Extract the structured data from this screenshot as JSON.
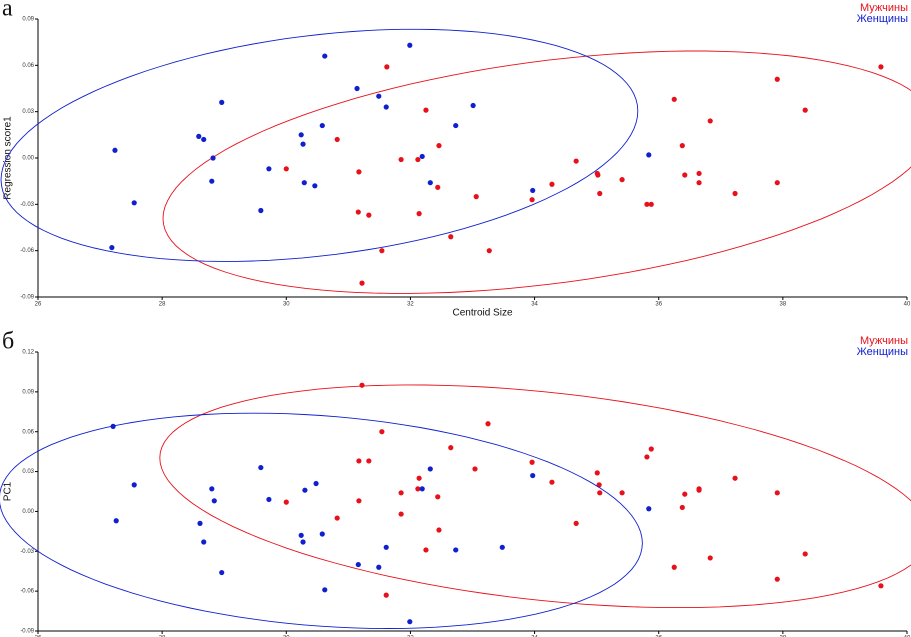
{
  "chart_data": [
    {
      "type": "scatter",
      "label": "а",
      "xlabel": "Centroid Size",
      "ylabel": "Regression score1",
      "xlim": [
        26,
        40
      ],
      "xticks": [
        26,
        28,
        30,
        32,
        34,
        36,
        38,
        40
      ],
      "ylim": [
        -0.09,
        0.09
      ],
      "yticks": [
        -0.09,
        -0.06,
        -0.03,
        {
          "value": 0,
          "label": "0.00"
        },
        0.03,
        0.06,
        0.09
      ],
      "legend": "upper right",
      "series": [
        {
          "name": "Мужчины",
          "color": "#e8101a",
          "x": [
            31.62,
            32.25,
            30.82,
            30.0,
            31.17,
            31.85,
            32.12,
            32.46,
            32.44,
            33.06,
            31.16,
            31.33,
            32.14,
            32.65,
            31.54,
            33.27,
            31.22,
            33.96,
            34.28,
            34.67,
            35.01,
            35.02,
            35.05,
            35.41,
            35.81,
            35.88,
            36.25,
            36.38,
            36.42,
            36.65,
            36.65,
            36.83,
            37.23,
            37.91,
            37.91,
            38.36,
            39.58
          ],
          "values": [
            0.059,
            0.031,
            0.012,
            -0.007,
            -0.009,
            -0.001,
            -0.001,
            0.008,
            -0.019,
            -0.025,
            -0.035,
            -0.037,
            -0.036,
            -0.051,
            -0.06,
            -0.06,
            -0.081,
            -0.027,
            -0.017,
            -0.002,
            -0.01,
            -0.011,
            -0.023,
            -0.014,
            -0.03,
            -0.03,
            0.038,
            0.008,
            -0.011,
            -0.01,
            -0.016,
            0.024,
            -0.023,
            0.051,
            -0.016,
            0.031,
            0.059
          ]
        },
        {
          "name": "Женщины",
          "color": "#1020d0",
          "x": [
            31.99,
            30.62,
            31.14,
            31.49,
            31.61,
            33.01,
            28.96,
            28.59,
            28.67,
            27.24,
            28.82,
            30.58,
            30.24,
            30.27,
            28.8,
            29.72,
            30.29,
            30.46,
            32.19,
            32.32,
            32.73,
            33.97,
            35.84,
            27.55,
            29.59,
            27.19
          ],
          "values": [
            0.073,
            0.066,
            0.045,
            0.04,
            0.033,
            0.034,
            0.036,
            0.014,
            0.012,
            0.005,
            0.0,
            0.021,
            0.015,
            0.009,
            -0.015,
            -0.007,
            -0.016,
            -0.018,
            0.001,
            -0.016,
            0.021,
            -0.021,
            0.002,
            -0.029,
            -0.034,
            -0.058
          ]
        }
      ]
    },
    {
      "type": "scatter",
      "label": "б",
      "ylabel": "PC1",
      "xlim": [
        26,
        40
      ],
      "xticks": [
        26,
        28,
        30,
        32,
        34,
        36,
        38,
        40
      ],
      "ylim": [
        -0.09,
        0.12
      ],
      "yticks": [
        -0.09,
        -0.06,
        -0.03,
        {
          "value": 0,
          "label": "0.00"
        },
        0.03,
        0.06,
        0.09,
        0.12
      ],
      "legend": "upper right",
      "series": [
        {
          "name": "Мужчины",
          "color": "#e8101a",
          "x": [
            31.22,
            33.25,
            31.54,
            32.65,
            31.17,
            31.33,
            33.04,
            32.14,
            32.12,
            32.44,
            31.85,
            31.85,
            31.17,
            30.82,
            30.0,
            32.46,
            32.25,
            31.61,
            33.96,
            34.28,
            34.67,
            35.01,
            35.04,
            35.05,
            35.41,
            35.81,
            35.88,
            36.25,
            36.38,
            36.42,
            36.65,
            36.65,
            36.83,
            37.23,
            37.91,
            37.91,
            38.36,
            39.58
          ],
          "values": [
            0.095,
            0.066,
            0.06,
            0.048,
            0.038,
            0.038,
            0.032,
            0.025,
            0.017,
            0.011,
            0.014,
            -0.002,
            0.008,
            -0.005,
            0.007,
            -0.014,
            -0.029,
            -0.063,
            0.037,
            0.022,
            -0.009,
            0.029,
            0.02,
            0.014,
            0.014,
            0.041,
            0.047,
            -0.042,
            0.003,
            0.013,
            0.017,
            0.016,
            -0.035,
            0.025,
            0.014,
            -0.051,
            -0.032,
            -0.056
          ]
        },
        {
          "name": "Женщины",
          "color": "#1020d0",
          "x": [
            27.21,
            27.55,
            27.26,
            29.59,
            30.48,
            29.72,
            30.3,
            28.8,
            28.84,
            32.32,
            32.19,
            28.61,
            28.67,
            28.96,
            30.58,
            30.24,
            30.27,
            31.61,
            31.16,
            31.49,
            32.73,
            33.48,
            33.97,
            35.84,
            30.62,
            31.99
          ],
          "values": [
            0.064,
            0.02,
            -0.007,
            0.033,
            0.021,
            0.009,
            0.016,
            0.017,
            0.008,
            0.032,
            0.017,
            -0.009,
            -0.023,
            -0.046,
            -0.017,
            -0.018,
            -0.023,
            -0.027,
            -0.04,
            -0.042,
            -0.029,
            -0.027,
            0.027,
            0.002,
            -0.059,
            -0.083
          ]
        }
      ]
    }
  ]
}
